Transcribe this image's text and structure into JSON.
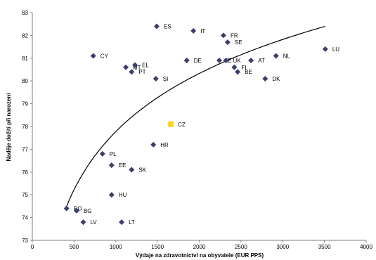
{
  "chart_data": {
    "type": "scatter",
    "title": "",
    "xlabel": "Výdaje na zdravotnictví na obyvatele (EUR PPS)",
    "ylabel": "Naděje dožití při narození",
    "xlim": [
      0,
      4000
    ],
    "ylim": [
      73,
      83
    ],
    "xticks": [
      0,
      500,
      1000,
      1500,
      2000,
      2500,
      3000,
      3500,
      4000
    ],
    "yticks": [
      73,
      74,
      75,
      76,
      77,
      78,
      79,
      80,
      81,
      82,
      83
    ],
    "grid": false,
    "series": [
      {
        "color": "#3a3f6e",
        "marker": "diamond",
        "points": [
          {
            "label": "ES",
            "x": 1490,
            "y": 82.4
          },
          {
            "label": "IT",
            "x": 1930,
            "y": 82.2
          },
          {
            "label": "FR",
            "x": 2290,
            "y": 82.0
          },
          {
            "label": "SE",
            "x": 2340,
            "y": 81.7
          },
          {
            "label": "LU",
            "x": 3510,
            "y": 81.4
          },
          {
            "label": "CY",
            "x": 730,
            "y": 81.1
          },
          {
            "label": "NL",
            "x": 2920,
            "y": 81.1
          },
          {
            "label": "MT",
            "x": 1120,
            "y": 80.6
          },
          {
            "label": "EL",
            "x": 1230,
            "y": 80.7
          },
          {
            "label": "DE",
            "x": 1850,
            "y": 80.9
          },
          {
            "label": "IE",
            "x": 2240,
            "y": 80.9
          },
          {
            "label": "UK",
            "x": 2320,
            "y": 80.9
          },
          {
            "label": "AT",
            "x": 2620,
            "y": 80.9
          },
          {
            "label": "FI",
            "x": 2420,
            "y": 80.6
          },
          {
            "label": "PT",
            "x": 1190,
            "y": 80.4
          },
          {
            "label": "BE",
            "x": 2460,
            "y": 80.4
          },
          {
            "label": "SI",
            "x": 1480,
            "y": 80.1
          },
          {
            "label": "DK",
            "x": 2790,
            "y": 80.1
          },
          {
            "label": "HR",
            "x": 1450,
            "y": 77.2
          },
          {
            "label": "PL",
            "x": 840,
            "y": 76.8
          },
          {
            "label": "EE",
            "x": 950,
            "y": 76.3
          },
          {
            "label": "SK",
            "x": 1190,
            "y": 76.1
          },
          {
            "label": "HU",
            "x": 950,
            "y": 75.0
          },
          {
            "label": "RO",
            "x": 410,
            "y": 74.4
          },
          {
            "label": "BG",
            "x": 530,
            "y": 74.3
          },
          {
            "label": "LV",
            "x": 610,
            "y": 73.8
          },
          {
            "label": "LT",
            "x": 1070,
            "y": 73.8
          }
        ]
      },
      {
        "color": "#ffd21f",
        "marker": "square",
        "points": [
          {
            "label": "CZ",
            "x": 1660,
            "y": 78.1
          }
        ]
      }
    ],
    "trendline": {
      "type": "logarithmic",
      "color": "#000000",
      "x_from": 400,
      "x_to": 3510,
      "y_from": 74.4,
      "y_to": 82.4
    }
  }
}
